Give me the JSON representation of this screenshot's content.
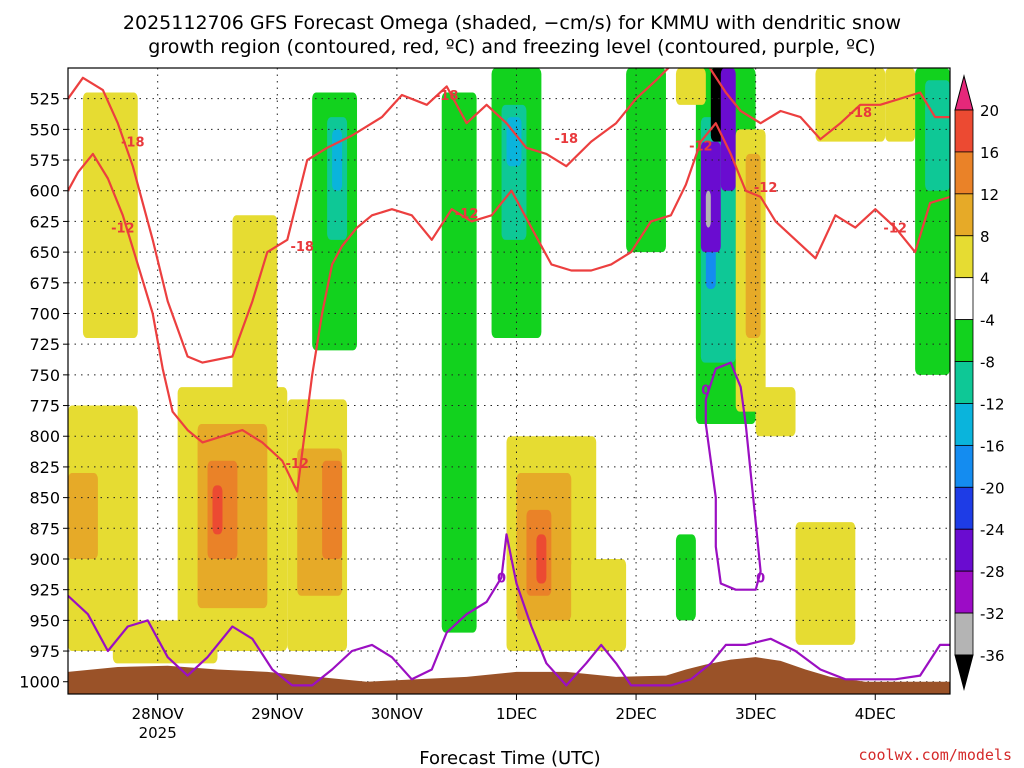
{
  "chart_data": {
    "type": "heatmap",
    "title_lines": [
      "2025112706 GFS Forecast Omega (shaded, −cm/s) for KMMU with dendritic snow",
      "growth region (contoured, red, ºC) and freezing level (contoured, purple, ºC)"
    ],
    "xlabel": "Forecast Time (UTC)",
    "credit": "coolwx.com/models",
    "x_range_hours": [
      0,
      177
    ],
    "x_ticks": [
      {
        "hours": 18,
        "label": "28NOV",
        "sub": "2025"
      },
      {
        "hours": 42,
        "label": "29NOV"
      },
      {
        "hours": 66,
        "label": "30NOV"
      },
      {
        "hours": 90,
        "label": "1DEC"
      },
      {
        "hours": 114,
        "label": "2DEC"
      },
      {
        "hours": 138,
        "label": "3DEC"
      },
      {
        "hours": 162,
        "label": "4DEC"
      }
    ],
    "y_range_hpa": [
      500,
      1010
    ],
    "y_ticks": [
      525,
      550,
      575,
      600,
      625,
      650,
      675,
      700,
      725,
      750,
      775,
      800,
      825,
      850,
      875,
      900,
      925,
      950,
      975,
      1000
    ],
    "colorbar": {
      "levels": [
        -36,
        -32,
        -28,
        -24,
        -20,
        -16,
        -12,
        -8,
        -4,
        4,
        8,
        12,
        16,
        20
      ],
      "label_levels": [
        20,
        16,
        12,
        8,
        4,
        -4,
        -8,
        -12,
        -16,
        -20,
        -24,
        -28,
        -32,
        -36
      ],
      "colors": [
        "#b4b4b4",
        "#9c0cc6",
        "#6a0cd0",
        "#1e3ce6",
        "#148cf0",
        "#0ab4dc",
        "#0ec896",
        "#12d21e",
        "#ffffff",
        "#e6dc32",
        "#e6aa28",
        "#ea8228",
        "#ec4a32"
      ],
      "top_color": "#e6287a",
      "bottom_color": "#000000"
    },
    "omega_regions": [
      {
        "t": [
          0,
          14
        ],
        "p": [
          775,
          975
        ],
        "v": 5
      },
      {
        "t": [
          0,
          6
        ],
        "p": [
          830,
          900
        ],
        "v": 9
      },
      {
        "t": [
          3,
          14
        ],
        "p": [
          520,
          720
        ],
        "v": 5
      },
      {
        "t": [
          22,
          44
        ],
        "p": [
          760,
          975
        ],
        "v": 5
      },
      {
        "t": [
          26,
          40
        ],
        "p": [
          790,
          940
        ],
        "v": 9
      },
      {
        "t": [
          28,
          34
        ],
        "p": [
          820,
          900
        ],
        "v": 13
      },
      {
        "t": [
          29,
          31
        ],
        "p": [
          840,
          880
        ],
        "v": 17
      },
      {
        "t": [
          44,
          56
        ],
        "p": [
          770,
          975
        ],
        "v": 5
      },
      {
        "t": [
          46,
          55
        ],
        "p": [
          810,
          930
        ],
        "v": 9
      },
      {
        "t": [
          51,
          55
        ],
        "p": [
          820,
          900
        ],
        "v": 13
      },
      {
        "t": [
          33,
          42
        ],
        "p": [
          620,
          770
        ],
        "v": 5
      },
      {
        "t": [
          9,
          30
        ],
        "p": [
          950,
          985
        ],
        "v": 5
      },
      {
        "t": [
          49,
          58
        ],
        "p": [
          520,
          730
        ],
        "v": -6
      },
      {
        "t": [
          52,
          56
        ],
        "p": [
          540,
          640
        ],
        "v": -10
      },
      {
        "t": [
          53,
          55
        ],
        "p": [
          550,
          600
        ],
        "v": -14
      },
      {
        "t": [
          75,
          82
        ],
        "p": [
          520,
          960
        ],
        "v": -6
      },
      {
        "t": [
          85,
          95
        ],
        "p": [
          500,
          720
        ],
        "v": -6
      },
      {
        "t": [
          87,
          92
        ],
        "p": [
          530,
          640
        ],
        "v": -10
      },
      {
        "t": [
          88,
          91
        ],
        "p": [
          540,
          580
        ],
        "v": -14
      },
      {
        "t": [
          88,
          106
        ],
        "p": [
          800,
          975
        ],
        "v": 5
      },
      {
        "t": [
          90,
          101
        ],
        "p": [
          830,
          950
        ],
        "v": 9
      },
      {
        "t": [
          92,
          97
        ],
        "p": [
          860,
          930
        ],
        "v": 13
      },
      {
        "t": [
          94,
          96
        ],
        "p": [
          880,
          920
        ],
        "v": 17
      },
      {
        "t": [
          101,
          112
        ],
        "p": [
          900,
          975
        ],
        "v": 5
      },
      {
        "t": [
          112,
          120
        ],
        "p": [
          500,
          650
        ],
        "v": -6
      },
      {
        "t": [
          126,
          138
        ],
        "p": [
          500,
          790
        ],
        "v": -8
      },
      {
        "t": [
          127,
          134
        ],
        "p": [
          540,
          740
        ],
        "v": -12
      },
      {
        "t": [
          128,
          130
        ],
        "p": [
          560,
          680
        ],
        "v": -18
      },
      {
        "t": [
          127,
          131
        ],
        "p": [
          560,
          650
        ],
        "v": -26
      },
      {
        "t": [
          128,
          129
        ],
        "p": [
          600,
          630
        ],
        "v": -34
      },
      {
        "t": [
          129,
          132
        ],
        "p": [
          500,
          560
        ],
        "v": -38
      },
      {
        "t": [
          131,
          134
        ],
        "p": [
          500,
          600
        ],
        "v": -26
      },
      {
        "t": [
          134,
          140
        ],
        "p": [
          550,
          780
        ],
        "v": 5
      },
      {
        "t": [
          136,
          139
        ],
        "p": [
          570,
          720
        ],
        "v": 9
      },
      {
        "t": [
          138,
          146
        ],
        "p": [
          760,
          800
        ],
        "v": 5
      },
      {
        "t": [
          122,
          126
        ],
        "p": [
          880,
          950
        ],
        "v": -6
      },
      {
        "t": [
          122,
          128
        ],
        "p": [
          500,
          530
        ],
        "v": 5
      },
      {
        "t": [
          146,
          158
        ],
        "p": [
          870,
          970
        ],
        "v": 5
      },
      {
        "t": [
          150,
          164
        ],
        "p": [
          500,
          560
        ],
        "v": 5
      },
      {
        "t": [
          164,
          170
        ],
        "p": [
          500,
          560
        ],
        "v": 5
      },
      {
        "t": [
          170,
          177
        ],
        "p": [
          500,
          750
        ],
        "v": -6
      },
      {
        "t": [
          172,
          177
        ],
        "p": [
          510,
          600
        ],
        "v": -10
      }
    ],
    "dgz_contours": [
      {
        "level": -18,
        "label": "-18",
        "points": [
          [
            0,
            525
          ],
          [
            3,
            508
          ],
          [
            7,
            518
          ],
          [
            10,
            545
          ],
          [
            13,
            580
          ],
          [
            17,
            640
          ],
          [
            20,
            690
          ],
          [
            24,
            735
          ],
          [
            27,
            740
          ],
          [
            33,
            735
          ],
          [
            37,
            690
          ],
          [
            40,
            650
          ],
          [
            44,
            640
          ],
          [
            48,
            575
          ],
          [
            52,
            565
          ],
          [
            57,
            555
          ],
          [
            63,
            540
          ],
          [
            67,
            522
          ],
          [
            72,
            530
          ],
          [
            76,
            515
          ],
          [
            80,
            545
          ],
          [
            84,
            530
          ],
          [
            88,
            545
          ],
          [
            92,
            565
          ],
          [
            96,
            570
          ],
          [
            100,
            580
          ],
          [
            105,
            560
          ],
          [
            110,
            545
          ],
          [
            114,
            525
          ],
          [
            118,
            510
          ],
          [
            121,
            498
          ],
          [
            125,
            498
          ],
          [
            128,
            495
          ],
          [
            132,
            520
          ],
          [
            135,
            535
          ],
          [
            139,
            545
          ],
          [
            143,
            535
          ],
          [
            147,
            540
          ],
          [
            151,
            558
          ],
          [
            155,
            545
          ],
          [
            159,
            530
          ],
          [
            163,
            530
          ],
          [
            167,
            525
          ],
          [
            171,
            520
          ],
          [
            174,
            540
          ],
          [
            177,
            540
          ]
        ]
      },
      {
        "level": -12,
        "label": "-12",
        "points": [
          [
            0,
            600
          ],
          [
            2,
            585
          ],
          [
            5,
            570
          ],
          [
            8,
            590
          ],
          [
            11,
            620
          ],
          [
            14,
            660
          ],
          [
            17,
            700
          ],
          [
            19,
            745
          ],
          [
            21,
            780
          ],
          [
            24,
            795
          ],
          [
            27,
            805
          ],
          [
            31,
            800
          ],
          [
            35,
            795
          ],
          [
            39,
            805
          ],
          [
            43,
            820
          ],
          [
            46,
            845
          ],
          [
            49,
            750
          ],
          [
            51,
            700
          ],
          [
            53,
            660
          ],
          [
            55,
            645
          ],
          [
            58,
            630
          ],
          [
            61,
            620
          ],
          [
            65,
            615
          ],
          [
            69,
            620
          ],
          [
            73,
            640
          ],
          [
            77,
            615
          ],
          [
            81,
            625
          ],
          [
            85,
            620
          ],
          [
            89,
            600
          ],
          [
            93,
            630
          ],
          [
            97,
            660
          ],
          [
            101,
            665
          ],
          [
            105,
            665
          ],
          [
            109,
            660
          ],
          [
            113,
            650
          ],
          [
            117,
            625
          ],
          [
            121,
            620
          ],
          [
            124,
            595
          ],
          [
            127,
            560
          ],
          [
            130,
            545
          ],
          [
            133,
            570
          ],
          [
            136,
            600
          ],
          [
            139,
            605
          ],
          [
            142,
            625
          ],
          [
            146,
            640
          ],
          [
            150,
            655
          ],
          [
            154,
            620
          ],
          [
            158,
            630
          ],
          [
            162,
            615
          ],
          [
            166,
            630
          ],
          [
            170,
            650
          ],
          [
            173,
            610
          ],
          [
            177,
            605
          ]
        ]
      },
      {
        "level": 0,
        "label": "0",
        "points": [
          [
            0,
            930
          ],
          [
            4,
            945
          ],
          [
            8,
            975
          ],
          [
            12,
            955
          ],
          [
            16,
            950
          ],
          [
            20,
            980
          ],
          [
            24,
            995
          ],
          [
            28,
            980
          ],
          [
            33,
            955
          ],
          [
            37,
            965
          ],
          [
            41,
            990
          ],
          [
            45,
            1003
          ],
          [
            49,
            1003
          ],
          [
            53,
            990
          ],
          [
            57,
            975
          ],
          [
            61,
            970
          ],
          [
            65,
            980
          ],
          [
            69,
            998
          ],
          [
            73,
            990
          ],
          [
            76,
            960
          ],
          [
            80,
            945
          ],
          [
            84,
            935
          ],
          [
            87,
            915
          ],
          [
            88,
            880
          ],
          [
            90,
            920
          ],
          [
            93,
            955
          ],
          [
            96,
            985
          ],
          [
            100,
            1003
          ],
          [
            104,
            985
          ],
          [
            107,
            970
          ],
          [
            110,
            985
          ],
          [
            113,
            1003
          ],
          [
            117,
            1003
          ],
          [
            121,
            1003
          ],
          [
            125,
            998
          ],
          [
            129,
            985
          ],
          [
            132,
            970
          ],
          [
            136,
            970
          ],
          [
            141,
            965
          ],
          [
            146,
            975
          ],
          [
            151,
            990
          ],
          [
            156,
            998
          ],
          [
            161,
            998
          ],
          [
            166,
            998
          ],
          [
            171,
            995
          ],
          [
            175,
            970
          ],
          [
            177,
            970
          ]
        ]
      },
      {
        "level": 0,
        "label": "0",
        "points": [
          [
            128,
            770
          ],
          [
            130,
            745
          ],
          [
            133,
            740
          ],
          [
            135,
            760
          ],
          [
            136,
            790
          ],
          [
            137,
            830
          ],
          [
            138,
            870
          ],
          [
            139,
            910
          ],
          [
            138,
            925
          ],
          [
            134,
            925
          ],
          [
            131,
            920
          ],
          [
            130,
            890
          ],
          [
            130,
            850
          ],
          [
            129,
            820
          ],
          [
            128,
            790
          ],
          [
            128,
            770
          ]
        ]
      }
    ],
    "dgz_labels": [
      {
        "t": 13,
        "p": 560,
        "text": "-18"
      },
      {
        "t": 11,
        "p": 630,
        "text": "-12"
      },
      {
        "t": 47,
        "p": 645,
        "text": "-18"
      },
      {
        "t": 46,
        "p": 822,
        "text": "-12"
      },
      {
        "t": 76,
        "p": 522,
        "text": "-18"
      },
      {
        "t": 80,
        "p": 618,
        "text": "-12"
      },
      {
        "t": 100,
        "p": 557,
        "text": "-18"
      },
      {
        "t": 127,
        "p": 563,
        "text": "-12"
      },
      {
        "t": 140,
        "p": 597,
        "text": "-12"
      },
      {
        "t": 159,
        "p": 536,
        "text": "-18"
      },
      {
        "t": 166,
        "p": 630,
        "text": "-12"
      }
    ],
    "freezing_labels": [
      {
        "t": 87,
        "p": 915,
        "text": "0"
      },
      {
        "t": 128,
        "p": 762,
        "text": "0"
      },
      {
        "t": 139,
        "p": 915,
        "text": "0"
      }
    ],
    "surface": [
      [
        0,
        992
      ],
      [
        10,
        988
      ],
      [
        20,
        987
      ],
      [
        30,
        990
      ],
      [
        40,
        992
      ],
      [
        50,
        996
      ],
      [
        60,
        1000
      ],
      [
        70,
        998
      ],
      [
        80,
        996
      ],
      [
        90,
        992
      ],
      [
        100,
        992
      ],
      [
        110,
        996
      ],
      [
        120,
        995
      ],
      [
        124,
        990
      ],
      [
        128,
        986
      ],
      [
        133,
        982
      ],
      [
        138,
        980
      ],
      [
        143,
        983
      ],
      [
        148,
        990
      ],
      [
        153,
        996
      ],
      [
        160,
        1000
      ],
      [
        170,
        1000
      ],
      [
        177,
        1000
      ]
    ]
  }
}
